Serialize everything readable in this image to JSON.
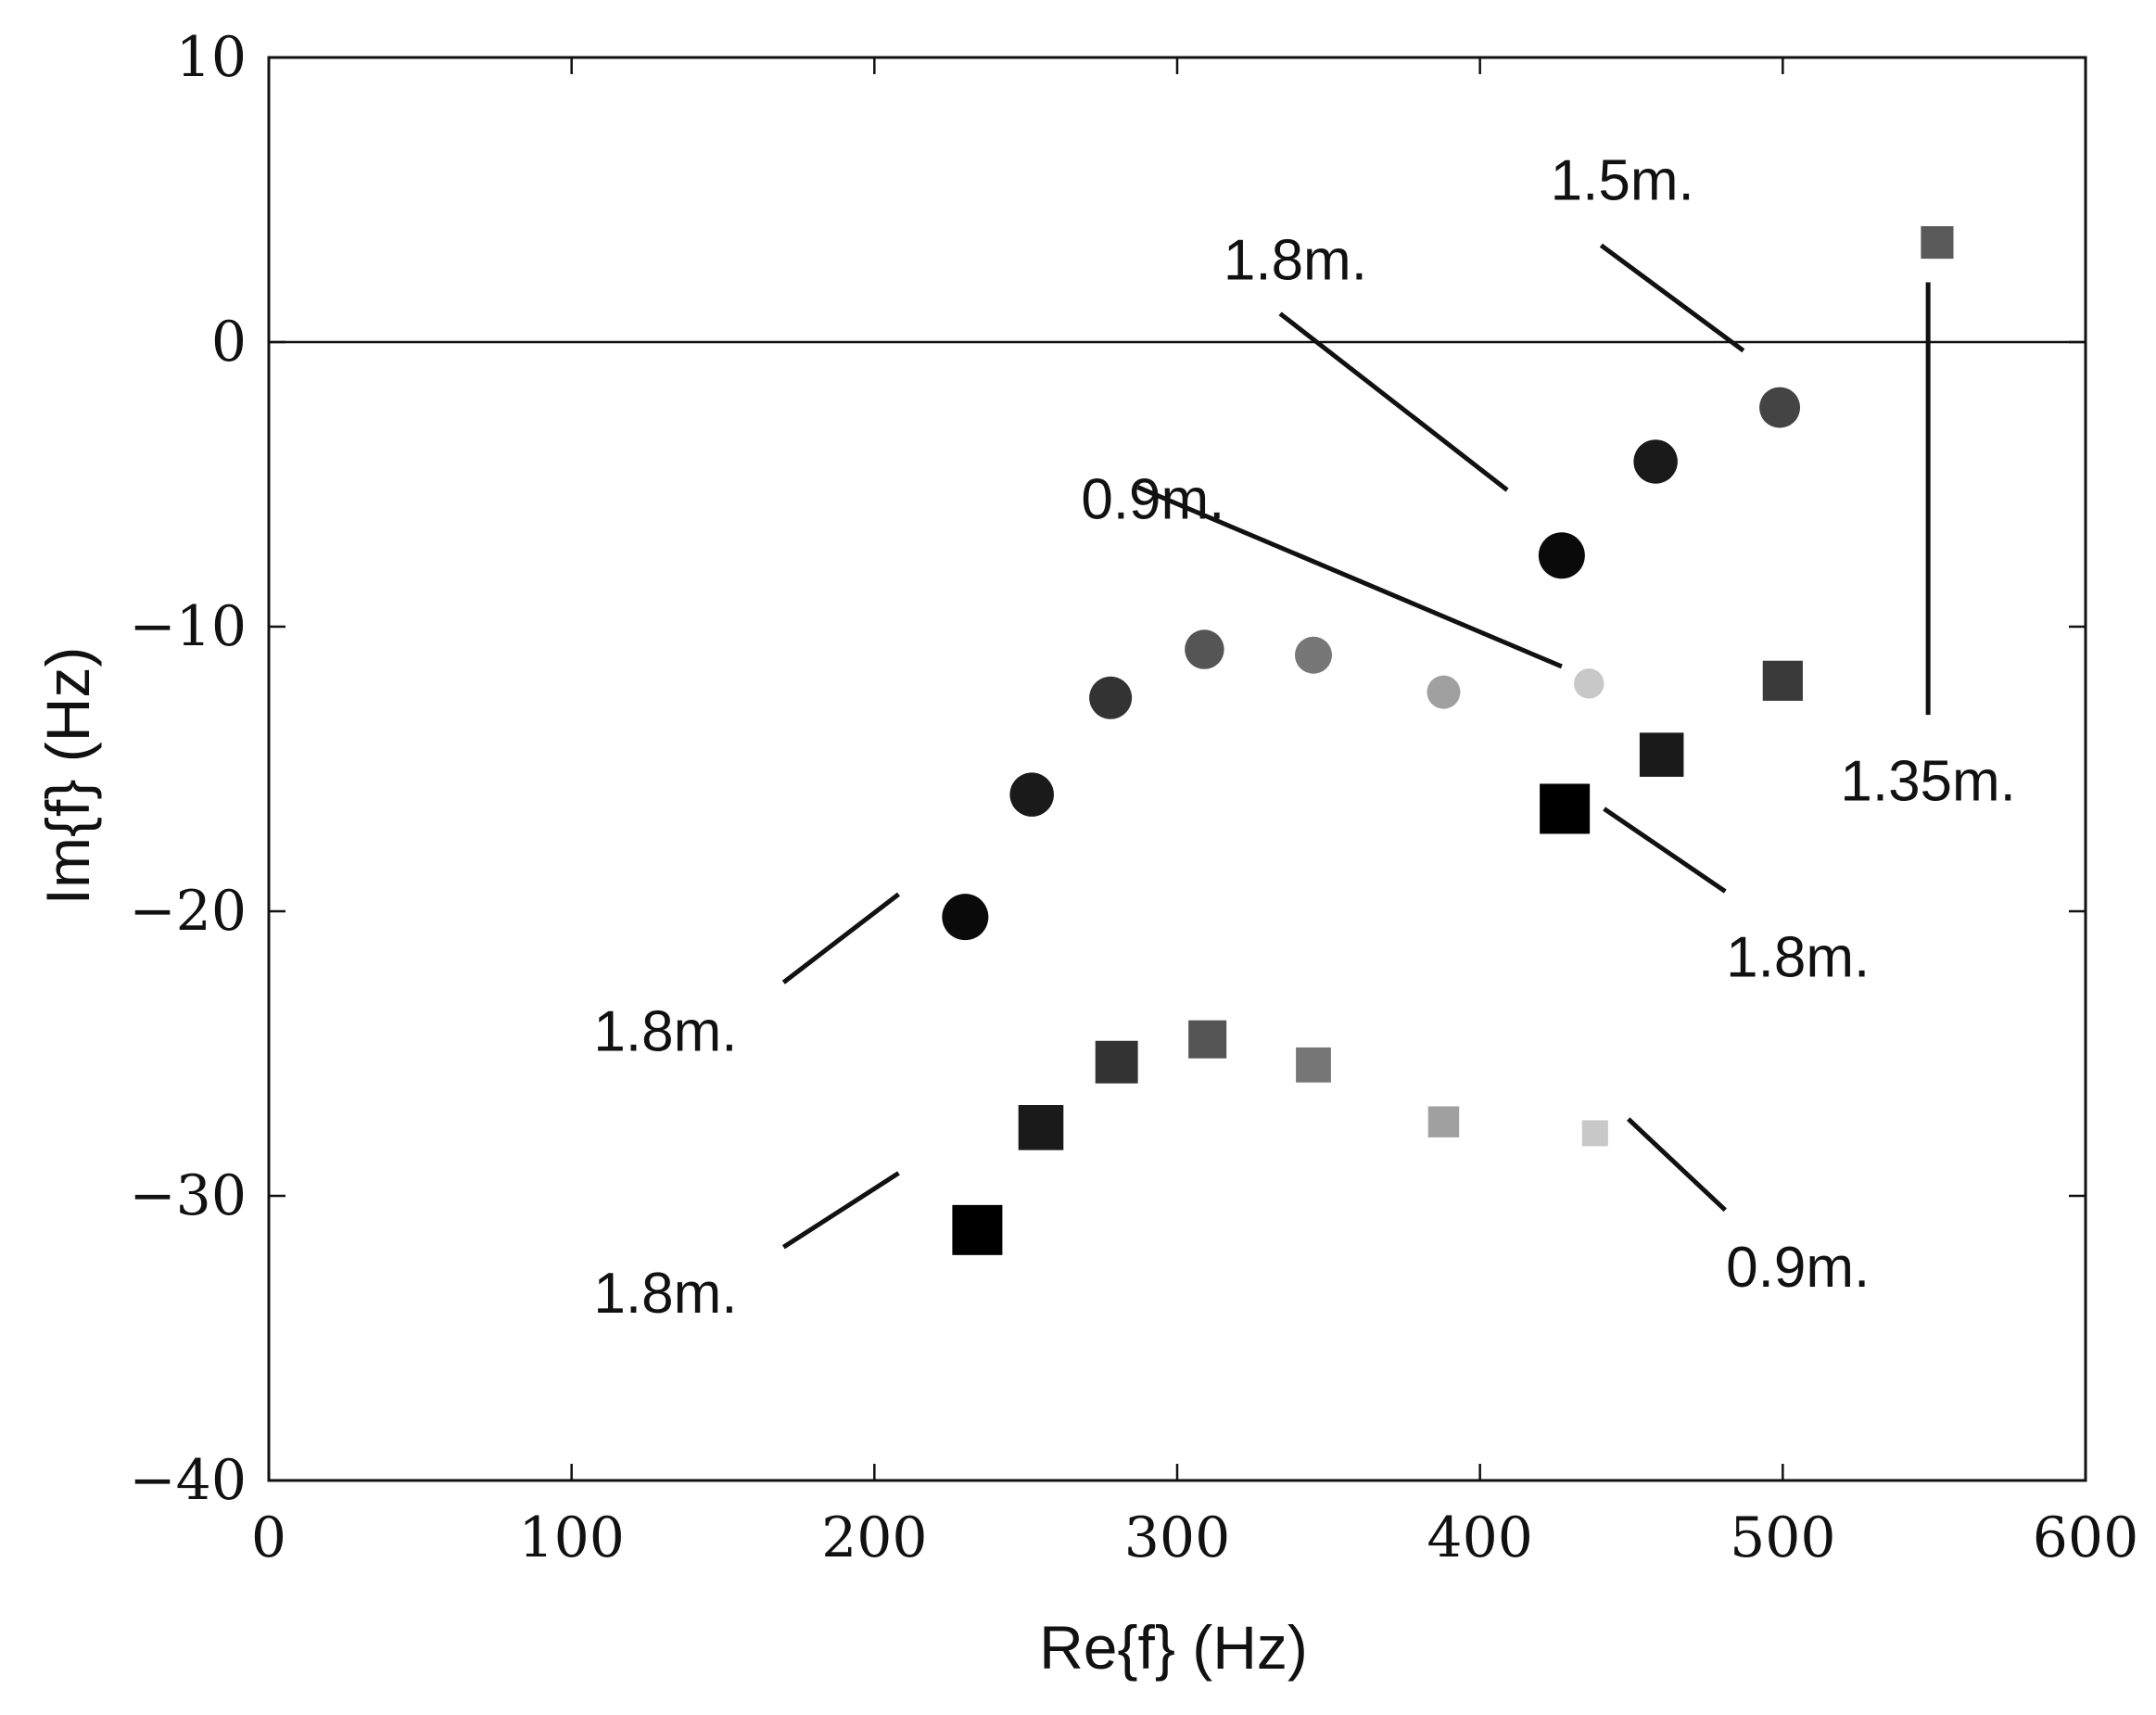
{
  "chart_data": {
    "type": "scatter",
    "title": "",
    "xlabel": "Re{f} (Hz)",
    "ylabel": "Im{f} (Hz)",
    "xlim": [
      0,
      600
    ],
    "ylim": [
      -40,
      10
    ],
    "xticks": [
      0,
      100,
      200,
      300,
      400,
      500,
      600
    ],
    "yticks": [
      10,
      0,
      -10,
      -20,
      -30,
      -40
    ],
    "xtick_labels": [
      "0",
      "100",
      "200",
      "300",
      "400",
      "500",
      "600"
    ],
    "ytick_labels": [
      "10",
      "0",
      "−10",
      "−20",
      "−30",
      "−40"
    ],
    "grid": false,
    "reference_line_y": 0,
    "series": [
      {
        "name": "circles",
        "marker": "circle",
        "points": [
          {
            "x": 230,
            "y": -20.2,
            "color": "#0a0a0a",
            "size": 1.0
          },
          {
            "x": 252,
            "y": -15.9,
            "color": "#1a1a1a",
            "size": 0.95
          },
          {
            "x": 278,
            "y": -12.5,
            "color": "#333333",
            "size": 0.92
          },
          {
            "x": 309,
            "y": -10.8,
            "color": "#555555",
            "size": 0.85
          },
          {
            "x": 345,
            "y": -11.0,
            "color": "#777777",
            "size": 0.8
          },
          {
            "x": 388,
            "y": -12.3,
            "color": "#a0a0a0",
            "size": 0.72
          },
          {
            "x": 436,
            "y": -12.0,
            "color": "#c8c8c8",
            "size": 0.65
          },
          {
            "x": 427,
            "y": -7.5,
            "color": "#0a0a0a",
            "size": 1.0
          },
          {
            "x": 458,
            "y": -4.2,
            "color": "#1a1a1a",
            "size": 0.95
          },
          {
            "x": 499,
            "y": -2.3,
            "color": "#444444",
            "size": 0.88
          }
        ]
      },
      {
        "name": "squares",
        "marker": "square",
        "points": [
          {
            "x": 234,
            "y": -31.2,
            "color": "#000000",
            "size": 1.0
          },
          {
            "x": 255,
            "y": -27.6,
            "color": "#1a1a1a",
            "size": 0.9
          },
          {
            "x": 280,
            "y": -25.3,
            "color": "#333333",
            "size": 0.85
          },
          {
            "x": 310,
            "y": -24.5,
            "color": "#555555",
            "size": 0.76
          },
          {
            "x": 345,
            "y": -25.4,
            "color": "#777777",
            "size": 0.7
          },
          {
            "x": 388,
            "y": -27.4,
            "color": "#a0a0a0",
            "size": 0.62
          },
          {
            "x": 438,
            "y": -27.8,
            "color": "#c8c8c8",
            "size": 0.52
          },
          {
            "x": 428,
            "y": -16.4,
            "color": "#000000",
            "size": 1.0
          },
          {
            "x": 460,
            "y": -14.5,
            "color": "#1a1a1a",
            "size": 0.88
          },
          {
            "x": 500,
            "y": -11.9,
            "color": "#3a3a3a",
            "size": 0.8
          },
          {
            "x": 551,
            "y": 3.5,
            "color": "#5a5a5a",
            "size": 0.65
          }
        ]
      }
    ],
    "annotations": [
      {
        "text": "1.5m.",
        "tx": 447,
        "ty": 5.0,
        "anchor": "middle",
        "line": [
          [
            440,
            3.4
          ],
          [
            487,
            -0.3
          ]
        ]
      },
      {
        "text": "1.8m.",
        "tx": 339,
        "ty": 2.2,
        "anchor": "middle",
        "line": [
          [
            334,
            1.0
          ],
          [
            409,
            -5.2
          ]
        ]
      },
      {
        "text": "0.9m.",
        "tx": 292,
        "ty": -6.2,
        "anchor": "middle",
        "line": [
          [
            287,
            -5.1
          ],
          [
            427,
            -11.4
          ]
        ]
      },
      {
        "text": "1.35m.",
        "tx": 548,
        "ty": -16.1,
        "anchor": "middle",
        "line": [
          [
            548,
            2.1
          ],
          [
            548,
            -13.1
          ]
        ]
      },
      {
        "text": "1.8m.",
        "tx": 505,
        "ty": -22.3,
        "anchor": "middle",
        "line": [
          [
            441,
            -16.4
          ],
          [
            481,
            -19.3
          ]
        ]
      },
      {
        "text": "1.8m.",
        "tx": 131,
        "ty": -24.9,
        "anchor": "middle",
        "line": [
          [
            170,
            -22.5
          ],
          [
            208,
            -19.4
          ]
        ]
      },
      {
        "text": "0.9m.",
        "tx": 505,
        "ty": -33.2,
        "anchor": "middle",
        "line": [
          [
            449,
            -27.3
          ],
          [
            481,
            -30.5
          ]
        ]
      },
      {
        "text": "1.8m.",
        "tx": 131,
        "ty": -34.1,
        "anchor": "middle",
        "line": [
          [
            170,
            -31.8
          ],
          [
            208,
            -29.2
          ]
        ]
      }
    ]
  }
}
